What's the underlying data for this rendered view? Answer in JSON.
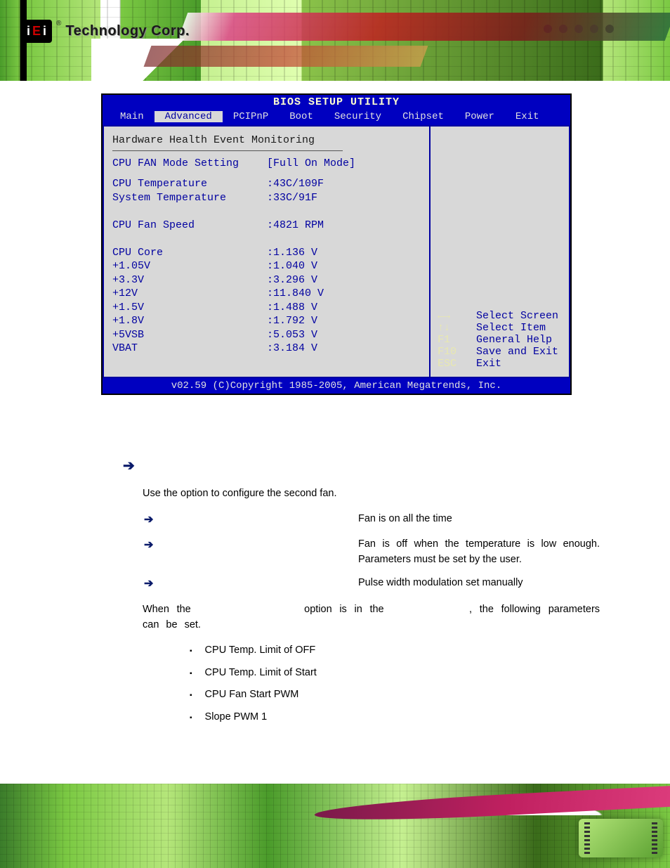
{
  "logo": {
    "reg": "®",
    "brand_i": "i",
    "brand_e": "E",
    "brand_i2": "i",
    "text": "Technology Corp."
  },
  "bios": {
    "title": "BIOS SETUP UTILITY",
    "tabs": [
      "Main",
      "Advanced",
      "PCIPnP",
      "Boot",
      "Security",
      "Chipset",
      "Power",
      "Exit"
    ],
    "active_tab_index": 1,
    "section": "Hardware Health Event Monitoring",
    "setting": {
      "label": "CPU FAN Mode Setting",
      "value": "[Full On Mode]"
    },
    "readings": [
      {
        "label": "CPU Temperature",
        "value": ":43C/109F"
      },
      {
        "label": "System Temperature",
        "value": ":33C/91F"
      },
      {
        "label": "",
        "value": ""
      },
      {
        "label": "CPU Fan Speed",
        "value": ":4821 RPM"
      },
      {
        "label": "",
        "value": ""
      },
      {
        "label": "CPU Core",
        "value": ":1.136 V"
      },
      {
        "label": "+1.05V",
        "value": ":1.040 V"
      },
      {
        "label": "+3.3V",
        "value": ":3.296 V"
      },
      {
        "label": "+12V",
        "value": ":11.840 V"
      },
      {
        "label": "+1.5V",
        "value": ":1.488 V"
      },
      {
        "label": "+1.8V",
        "value": ":1.792 V"
      },
      {
        "label": "+5VSB",
        "value": ":5.053 V"
      },
      {
        "label": "VBAT",
        "value": ":3.184 V"
      }
    ],
    "hints": [
      {
        "key": "←→",
        "text": "Select Screen"
      },
      {
        "key": "↑↓",
        "text": "Select Item"
      },
      {
        "key": "F1",
        "text": "General Help"
      },
      {
        "key": "F10",
        "text": "Save and Exit"
      },
      {
        "key": "ESC",
        "text": "Exit"
      }
    ],
    "footer": "v02.59 (C)Copyright 1985-2005, American Megatrends, Inc."
  },
  "doc": {
    "intro_pre": "Use the ",
    "intro_post": " option to configure the second fan.",
    "options": [
      {
        "desc": "Fan is on all the time"
      },
      {
        "desc": "Fan is off when the temperature is low enough. Parameters must be set by the user."
      },
      {
        "desc": "Pulse width modulation set manually"
      }
    ],
    "when_1": "When the ",
    "when_2": " option is in the ",
    "when_3": ", the following parameters can be set.",
    "bullets": [
      "CPU Temp. Limit of OFF",
      "CPU Temp. Limit of Start",
      "CPU Fan Start PWM",
      "Slope PWM 1"
    ]
  },
  "colors": {
    "bios_blue": "#0000c0",
    "bios_grey": "#d8d8d8",
    "bios_text": "#0000a0",
    "nav_arrow": "#0a1a6a"
  }
}
